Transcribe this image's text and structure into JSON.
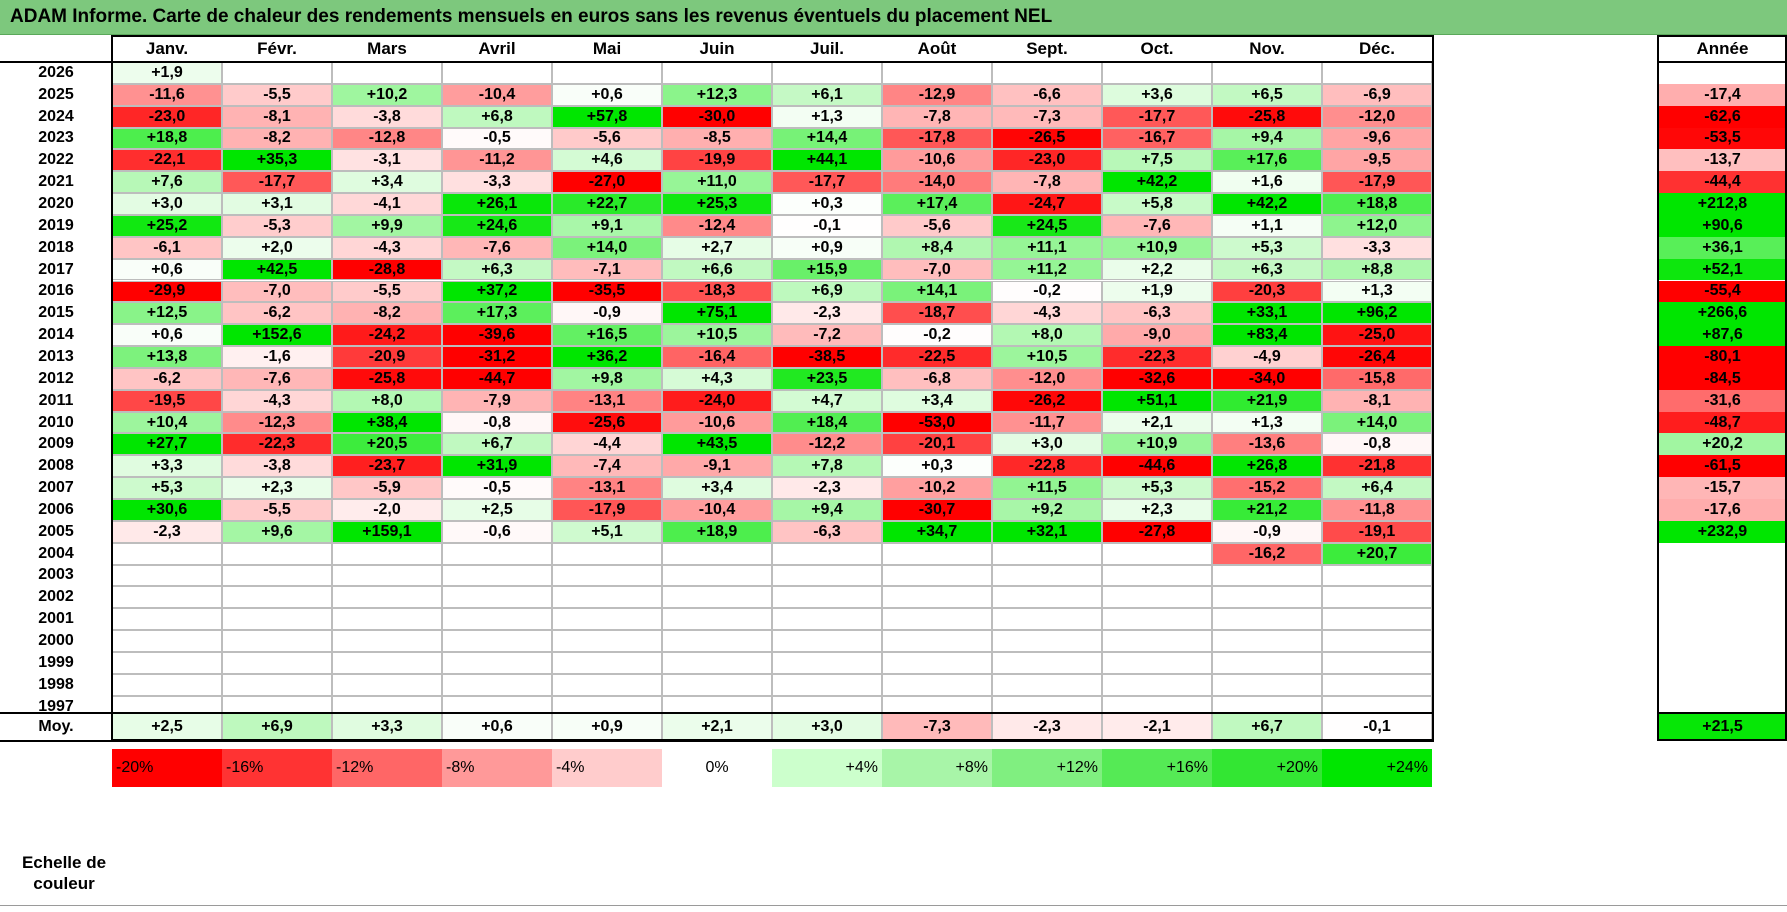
{
  "title": "ADAM Informe. Carte de chaleur des rendements mensuels en euros sans les revenus éventuels du placement NEL",
  "chart_data": {
    "type": "heatmap",
    "title": "ADAM Informe. Carte de chaleur des rendements mensuels en euros sans les revenus éventuels du placement NEL",
    "months": [
      "Janv.",
      "Févr.",
      "Mars",
      "Avril",
      "Mai",
      "Juin",
      "Juil.",
      "Août",
      "Sept.",
      "Oct.",
      "Nov.",
      "Déc."
    ],
    "year_header": "Année",
    "rows": [
      {
        "year": "2026",
        "values": [
          "+1,9",
          "",
          "",
          "",
          "",
          "",
          "",
          "",
          "",
          "",
          "",
          ""
        ],
        "annual": ""
      },
      {
        "year": "2025",
        "values": [
          "-11,6",
          "-5,5",
          "+10,2",
          "-10,4",
          "+0,6",
          "+12,3",
          "+6,1",
          "-12,9",
          "-6,6",
          "+3,6",
          "+6,5",
          "-6,9"
        ],
        "annual": "-17,4"
      },
      {
        "year": "2024",
        "values": [
          "-23,0",
          "-8,1",
          "-3,8",
          "+6,8",
          "+57,8",
          "-30,0",
          "+1,3",
          "-7,8",
          "-7,3",
          "-17,7",
          "-25,8",
          "-12,0"
        ],
        "annual": "-62,6"
      },
      {
        "year": "2023",
        "values": [
          "+18,8",
          "-8,2",
          "-12,8",
          "-0,5",
          "-5,6",
          "-8,5",
          "+14,4",
          "-17,8",
          "-26,5",
          "-16,7",
          "+9,4",
          "-9,6"
        ],
        "annual": "-53,5"
      },
      {
        "year": "2022",
        "values": [
          "-22,1",
          "+35,3",
          "-3,1",
          "-11,2",
          "+4,6",
          "-19,9",
          "+44,1",
          "-10,6",
          "-23,0",
          "+7,5",
          "+17,6",
          "-9,5"
        ],
        "annual": "-13,7"
      },
      {
        "year": "2021",
        "values": [
          "+7,6",
          "-17,7",
          "+3,4",
          "-3,3",
          "-27,0",
          "+11,0",
          "-17,7",
          "-14,0",
          "-7,8",
          "+42,2",
          "+1,6",
          "-17,9"
        ],
        "annual": "-44,4"
      },
      {
        "year": "2020",
        "values": [
          "+3,0",
          "+3,1",
          "-4,1",
          "+26,1",
          "+22,7",
          "+25,3",
          "+0,3",
          "+17,4",
          "-24,7",
          "+5,8",
          "+42,2",
          "+18,8"
        ],
        "annual": "+212,8"
      },
      {
        "year": "2019",
        "values": [
          "+25,2",
          "-5,3",
          "+9,9",
          "+24,6",
          "+9,1",
          "-12,4",
          "-0,1",
          "-5,6",
          "+24,5",
          "-7,6",
          "+1,1",
          "+12,0"
        ],
        "annual": "+90,6"
      },
      {
        "year": "2018",
        "values": [
          "-6,1",
          "+2,0",
          "-4,3",
          "-7,6",
          "+14,0",
          "+2,7",
          "+0,9",
          "+8,4",
          "+11,1",
          "+10,9",
          "+5,3",
          "-3,3"
        ],
        "annual": "+36,1"
      },
      {
        "year": "2017",
        "values": [
          "+0,6",
          "+42,5",
          "-28,8",
          "+6,3",
          "-7,1",
          "+6,6",
          "+15,9",
          "-7,0",
          "+11,2",
          "+2,2",
          "+6,3",
          "+8,8"
        ],
        "annual": "+52,1"
      },
      {
        "year": "2016",
        "values": [
          "-29,9",
          "-7,0",
          "-5,5",
          "+37,2",
          "-35,5",
          "-18,3",
          "+6,9",
          "+14,1",
          "-0,2",
          "+1,9",
          "-20,3",
          "+1,3"
        ],
        "annual": "-55,4"
      },
      {
        "year": "2015",
        "values": [
          "+12,5",
          "-6,2",
          "-8,2",
          "+17,3",
          "-0,9",
          "+75,1",
          "-2,3",
          "-18,7",
          "-4,3",
          "-6,3",
          "+33,1",
          "+96,2"
        ],
        "annual": "+266,6"
      },
      {
        "year": "2014",
        "values": [
          "+0,6",
          "+152,6",
          "-24,2",
          "-39,6",
          "+16,5",
          "+10,5",
          "-7,2",
          "-0,2",
          "+8,0",
          "-9,0",
          "+83,4",
          "-25,0"
        ],
        "annual": "+87,6"
      },
      {
        "year": "2013",
        "values": [
          "+13,8",
          "-1,6",
          "-20,9",
          "-31,2",
          "+36,2",
          "-16,4",
          "-38,5",
          "-22,5",
          "+10,5",
          "-22,3",
          "-4,9",
          "-26,4"
        ],
        "annual": "-80,1"
      },
      {
        "year": "2012",
        "values": [
          "-6,2",
          "-7,6",
          "-25,8",
          "-44,7",
          "+9,8",
          "+4,3",
          "+23,5",
          "-6,8",
          "-12,0",
          "-32,6",
          "-34,0",
          "-15,8"
        ],
        "annual": "-84,5"
      },
      {
        "year": "2011",
        "values": [
          "-19,5",
          "-4,3",
          "+8,0",
          "-7,9",
          "-13,1",
          "-24,0",
          "+4,7",
          "+3,4",
          "-26,2",
          "+51,1",
          "+21,9",
          "-8,1"
        ],
        "annual": "-31,6"
      },
      {
        "year": "2010",
        "values": [
          "+10,4",
          "-12,3",
          "+38,4",
          "-0,8",
          "-25,6",
          "-10,6",
          "+18,4",
          "-53,0",
          "-11,7",
          "+2,1",
          "+1,3",
          "+14,0"
        ],
        "annual": "-48,7"
      },
      {
        "year": "2009",
        "values": [
          "+27,7",
          "-22,3",
          "+20,5",
          "+6,7",
          "-4,4",
          "+43,5",
          "-12,2",
          "-20,1",
          "+3,0",
          "+10,9",
          "-13,6",
          "-0,8"
        ],
        "annual": "+20,2"
      },
      {
        "year": "2008",
        "values": [
          "+3,3",
          "-3,8",
          "-23,7",
          "+31,9",
          "-7,4",
          "-9,1",
          "+7,8",
          "+0,3",
          "-22,8",
          "-44,6",
          "+26,8",
          "-21,8"
        ],
        "annual": "-61,5"
      },
      {
        "year": "2007",
        "values": [
          "+5,3",
          "+2,3",
          "-5,9",
          "-0,5",
          "-13,1",
          "+3,4",
          "-2,3",
          "-10,2",
          "+11,5",
          "+5,3",
          "-15,2",
          "+6,4"
        ],
        "annual": "-15,7"
      },
      {
        "year": "2006",
        "values": [
          "+30,6",
          "-5,5",
          "-2,0",
          "+2,5",
          "-17,9",
          "-10,4",
          "+9,4",
          "-30,7",
          "+9,2",
          "+2,3",
          "+21,2",
          "-11,8"
        ],
        "annual": "-17,6"
      },
      {
        "year": "2005",
        "values": [
          "-2,3",
          "+9,6",
          "+159,1",
          "-0,6",
          "+5,1",
          "+18,9",
          "-6,3",
          "+34,7",
          "+32,1",
          "-27,8",
          "-0,9",
          "-19,1"
        ],
        "annual": "+232,9"
      },
      {
        "year": "2004",
        "values": [
          "",
          "",
          "",
          "",
          "",
          "",
          "",
          "",
          "",
          "",
          "-16,2",
          "+20,7"
        ],
        "annual": ""
      },
      {
        "year": "2003",
        "values": [
          "",
          "",
          "",
          "",
          "",
          "",
          "",
          "",
          "",
          "",
          "",
          ""
        ],
        "annual": ""
      },
      {
        "year": "2002",
        "values": [
          "",
          "",
          "",
          "",
          "",
          "",
          "",
          "",
          "",
          "",
          "",
          ""
        ],
        "annual": ""
      },
      {
        "year": "2001",
        "values": [
          "",
          "",
          "",
          "",
          "",
          "",
          "",
          "",
          "",
          "",
          "",
          ""
        ],
        "annual": ""
      },
      {
        "year": "2000",
        "values": [
          "",
          "",
          "",
          "",
          "",
          "",
          "",
          "",
          "",
          "",
          "",
          ""
        ],
        "annual": ""
      },
      {
        "year": "1999",
        "values": [
          "",
          "",
          "",
          "",
          "",
          "",
          "",
          "",
          "",
          "",
          "",
          ""
        ],
        "annual": ""
      },
      {
        "year": "1998",
        "values": [
          "",
          "",
          "",
          "",
          "",
          "",
          "",
          "",
          "",
          "",
          "",
          ""
        ],
        "annual": ""
      },
      {
        "year": "1997",
        "values": [
          "",
          "",
          "",
          "",
          "",
          "",
          "",
          "",
          "",
          "",
          "",
          ""
        ],
        "annual": ""
      }
    ],
    "average": {
      "label": "Moy.",
      "values": [
        "+2,5",
        "+6,9",
        "+3,3",
        "+0,6",
        "+0,9",
        "+2,1",
        "+3,0",
        "-7,3",
        "-2,3",
        "-2,1",
        "+6,7",
        "-0,1"
      ],
      "annual": "+21,5"
    },
    "color_scale": {
      "label": "Echelle de couleur",
      "steps": [
        "-20%",
        "-16%",
        "-12%",
        "-8%",
        "-4%",
        "0%",
        "+4%",
        "+8%",
        "+12%",
        "+16%",
        "+20%",
        "+24%"
      ],
      "colors": [
        "#ff0000",
        "#ff3333",
        "#ff6666",
        "#ff9999",
        "#ffcccc",
        "#ffffff",
        "#ccffcc",
        "#a8f5a8",
        "#80ef80",
        "#55ea55",
        "#33e633",
        "#00e600"
      ]
    }
  }
}
